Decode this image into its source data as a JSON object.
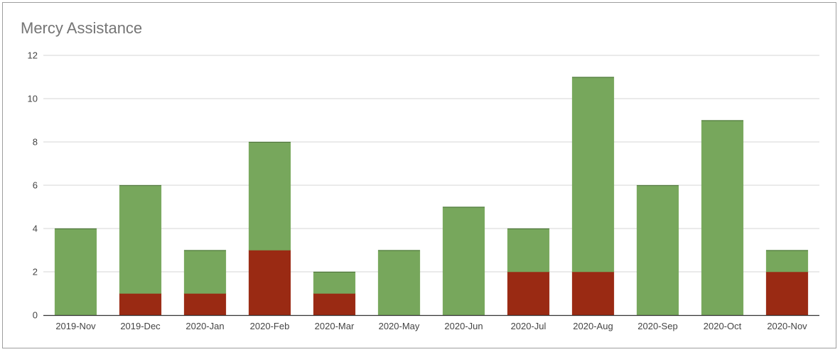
{
  "chart_data": {
    "type": "bar",
    "stacked": true,
    "title": "Mercy Assistance",
    "xlabel": "",
    "ylabel": "",
    "categories": [
      "2019-Nov",
      "2019-Dec",
      "2020-Jan",
      "2020-Feb",
      "2020-Mar",
      "2020-May",
      "2020-Jun",
      "2020-Jul",
      "2020-Aug",
      "2020-Sep",
      "2020-Oct",
      "2020-Nov"
    ],
    "series": [
      {
        "color": "#9a2a13",
        "values": [
          0,
          1,
          1,
          3,
          1,
          0,
          0,
          2,
          2,
          0,
          0,
          2
        ]
      },
      {
        "color": "#77a75c",
        "values": [
          4,
          5,
          2,
          5,
          1,
          3,
          5,
          2,
          9,
          6,
          9,
          1
        ]
      }
    ],
    "ylim": [
      0,
      12
    ],
    "yticks": [
      0,
      2,
      4,
      6,
      8,
      10,
      12
    ],
    "grid": true,
    "legend": "none"
  }
}
